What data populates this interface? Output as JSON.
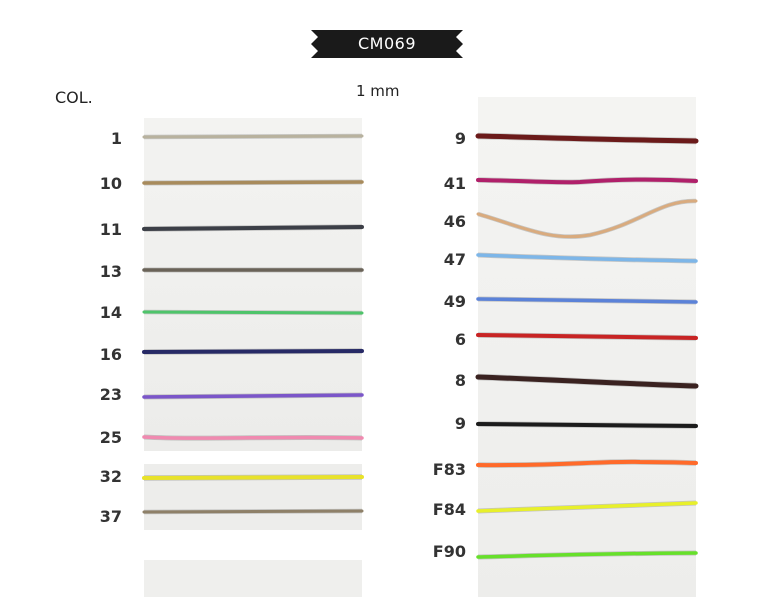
{
  "header": {
    "code": "CM069",
    "col_label": "COL.",
    "size_label": "1 mm",
    "ribbon_color": "#1a1a1a"
  },
  "left_column": [
    {
      "label": "1",
      "color": "#b8b29e"
    },
    {
      "label": "10",
      "color": "#a88b5c"
    },
    {
      "label": "11",
      "color": "#3c3f47"
    },
    {
      "label": "13",
      "color": "#6a6358"
    },
    {
      "label": "14",
      "color": "#4ec46a"
    },
    {
      "label": "16",
      "color": "#272a66"
    },
    {
      "label": "23",
      "color": "#7b56c9"
    },
    {
      "label": "25",
      "color": "#f08ab0"
    },
    {
      "label": "32",
      "color": "#e8e22a"
    },
    {
      "label": "37",
      "color": "#8e8068"
    }
  ],
  "right_column": [
    {
      "label": "9",
      "color": "#6b1a1a"
    },
    {
      "label": "41",
      "color": "#b0206a"
    },
    {
      "label": "46",
      "color": "#d9ab7e"
    },
    {
      "label": "47",
      "color": "#7db6e8"
    },
    {
      "label": "49",
      "color": "#5b82d8"
    },
    {
      "label": "6",
      "color": "#c82424"
    },
    {
      "label": "8",
      "color": "#3a2220"
    },
    {
      "label": "9",
      "color": "#1c1c1c"
    },
    {
      "label": "F83",
      "color": "#ff6a2a"
    },
    {
      "label": "F84",
      "color": "#e8f02a"
    },
    {
      "label": "F90",
      "color": "#66e02a"
    }
  ]
}
